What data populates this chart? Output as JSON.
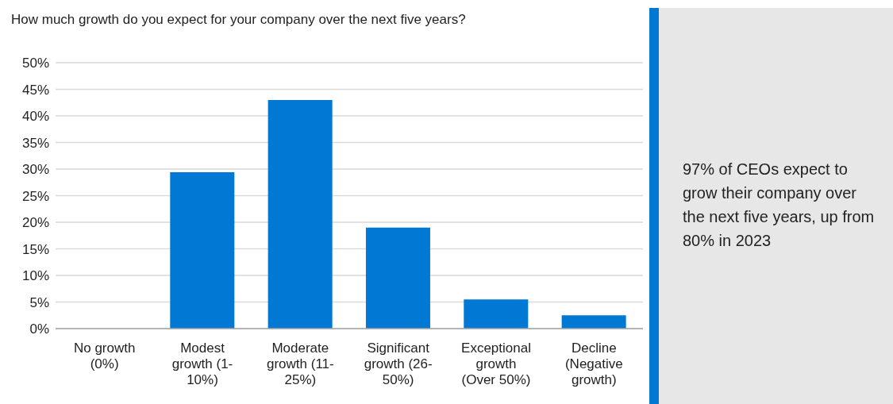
{
  "chart_data": {
    "type": "bar",
    "title": "How much growth do you expect for your company over the next five years?",
    "categories": [
      "No growth (0%)",
      "Modest growth (1-10%)",
      "Moderate growth (11-25%)",
      "Significant growth (26-50%)",
      "Exceptional growth (Over 50%)",
      "Decline (Negative growth)"
    ],
    "values": [
      0,
      29.4,
      43.0,
      19.0,
      5.5,
      2.5
    ],
    "color": "#0078d4",
    "ylim": [
      0,
      50
    ],
    "yticks": [
      {
        "value": 0,
        "label": "0%"
      },
      {
        "value": 5,
        "label": "5%"
      },
      {
        "value": 10,
        "label": "10%"
      },
      {
        "value": 15,
        "label": "15%"
      },
      {
        "value": 20,
        "label": "20%"
      },
      {
        "value": 25,
        "label": "25%"
      },
      {
        "value": 30,
        "label": "30%"
      },
      {
        "value": 35,
        "label": "35%"
      },
      {
        "value": 40,
        "label": "40%"
      },
      {
        "value": 45,
        "label": "45%"
      },
      {
        "value": 50,
        "label": "50%"
      }
    ],
    "grid": "y",
    "annotations": [
      "97% of CEOs expect to grow their company over the next five years, up from 80% in 2023"
    ]
  }
}
